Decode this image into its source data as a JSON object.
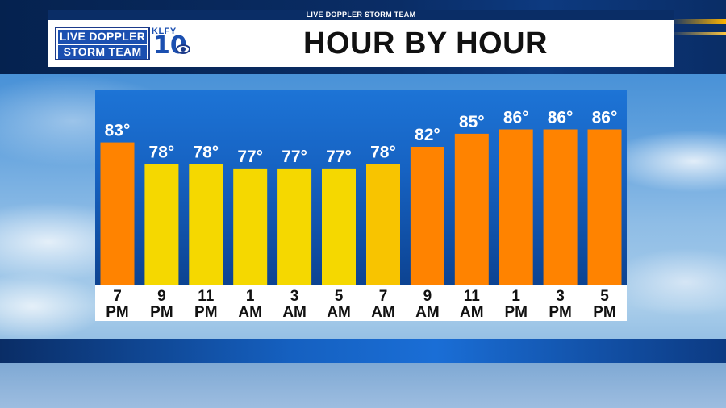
{
  "header": {
    "strip_label": "LIVE DOPPLER STORM TEAM",
    "title": "HOUR BY HOUR"
  },
  "logo": {
    "line1": "LIVE DOPPLER",
    "line2": "STORM TEAM",
    "station": "KLFY",
    "channel": "10",
    "network_icon": "cbs-eye-icon"
  },
  "colors": {
    "warm_bar": "#ff8300",
    "mild_bar": "#f5d800",
    "warmish_bar": "#f8c000",
    "panel_blue": "#1662c2",
    "label_bg": "#ffffff"
  },
  "chart_data": {
    "type": "bar",
    "title": "HOUR BY HOUR",
    "categories": [
      {
        "hour": "7",
        "period": "PM"
      },
      {
        "hour": "9",
        "period": "PM"
      },
      {
        "hour": "11",
        "period": "PM"
      },
      {
        "hour": "1",
        "period": "AM"
      },
      {
        "hour": "3",
        "period": "AM"
      },
      {
        "hour": "5",
        "period": "AM"
      },
      {
        "hour": "7",
        "period": "AM"
      },
      {
        "hour": "9",
        "period": "AM"
      },
      {
        "hour": "11",
        "period": "AM"
      },
      {
        "hour": "1",
        "period": "PM"
      },
      {
        "hour": "3",
        "period": "PM"
      },
      {
        "hour": "5",
        "period": "PM"
      }
    ],
    "values": [
      83,
      78,
      78,
      77,
      77,
      77,
      78,
      82,
      85,
      86,
      86,
      86
    ],
    "value_labels": [
      "83°",
      "78°",
      "78°",
      "77°",
      "77°",
      "77°",
      "78°",
      "82°",
      "85°",
      "86°",
      "86°",
      "86°"
    ],
    "bar_colors": [
      "#ff8300",
      "#f5d800",
      "#f5d800",
      "#f5d800",
      "#f5d800",
      "#f5d800",
      "#f8c400",
      "#ff8300",
      "#ff8300",
      "#ff8300",
      "#ff8300",
      "#ff8300"
    ],
    "ylim": [
      50,
      90
    ],
    "xlabel": "",
    "ylabel": "",
    "grid": false
  }
}
